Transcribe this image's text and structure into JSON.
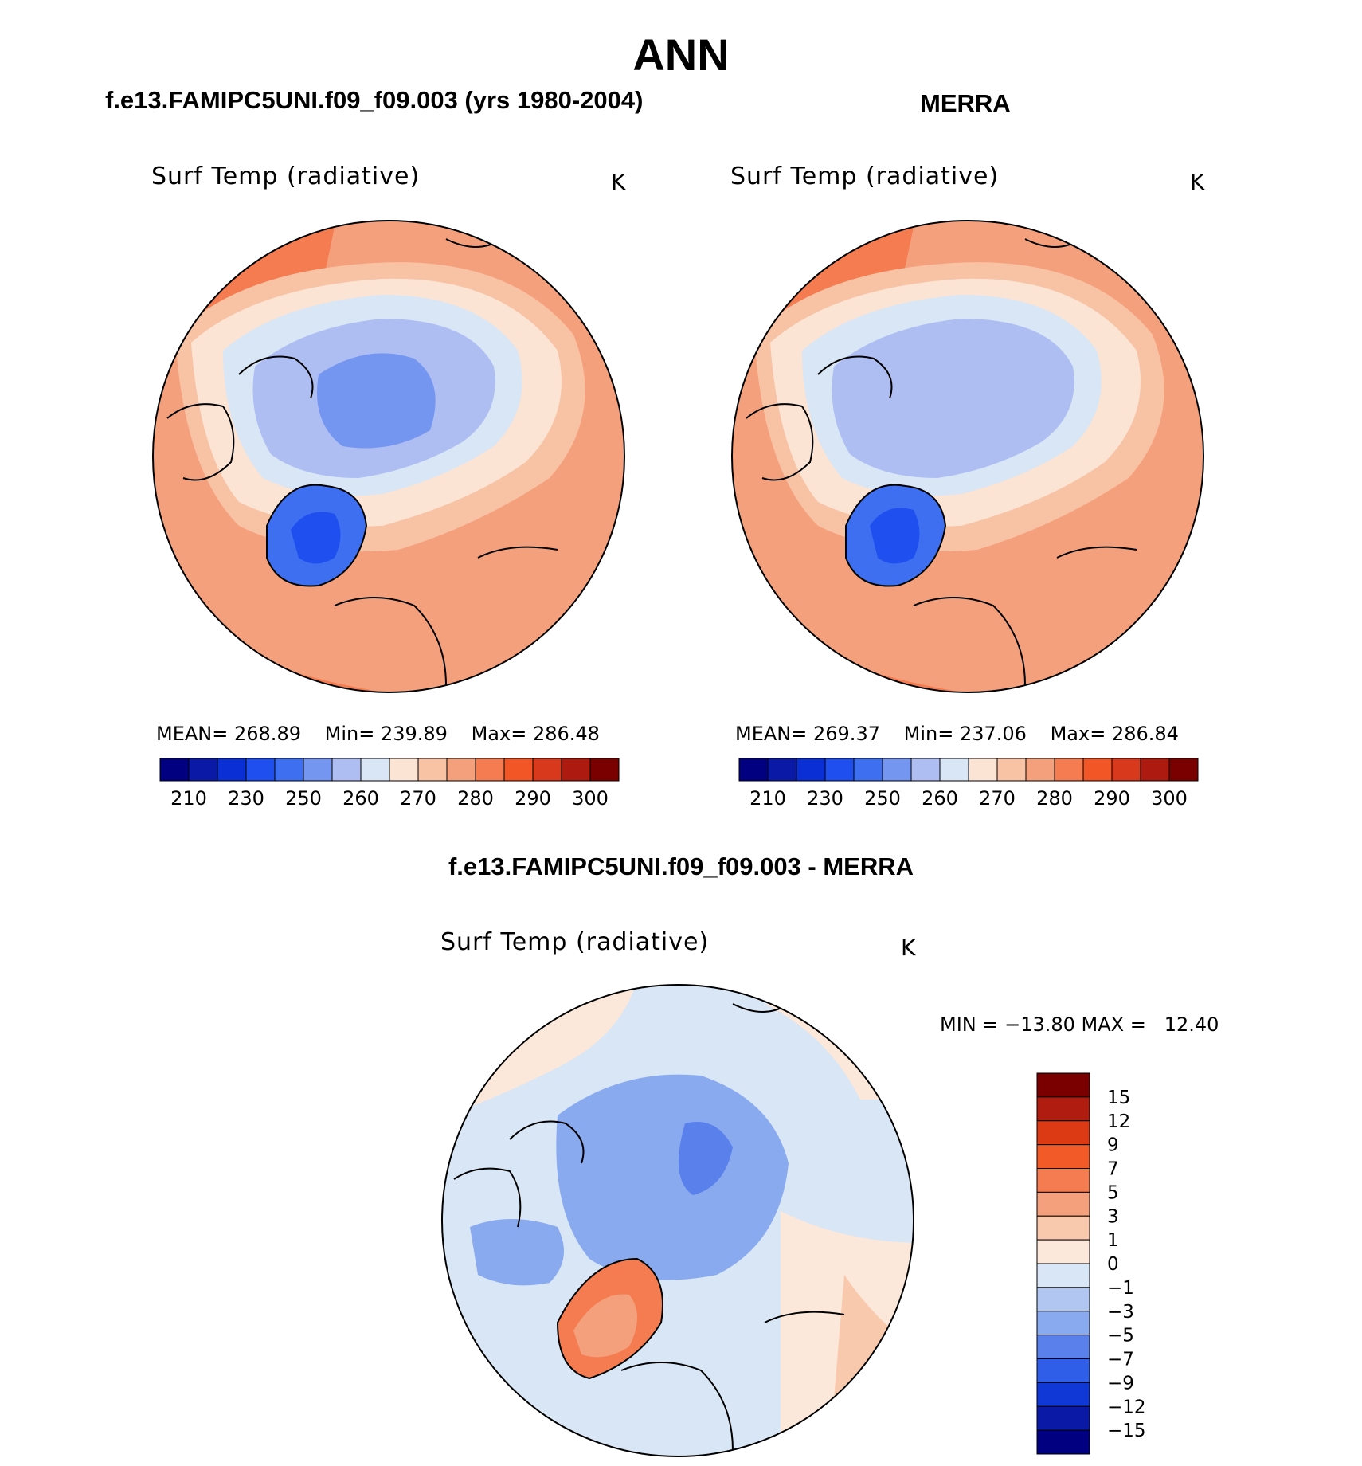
{
  "page": {
    "title": "ANN",
    "left_title": "f.e13.FAMIPC5UNI.f09_f09.003 (yrs 1980-2004)",
    "right_title": "MERRA",
    "bottom_title": "f.e13.FAMIPC5UNI.f09_f09.003 - MERRA"
  },
  "panels": [
    {
      "id": "model",
      "variable": "Surf Temp (radiative)",
      "units": "K",
      "stats": {
        "mean_label": "MEAN=",
        "mean": "268.89",
        "min_label": "Min=",
        "min": "239.89",
        "max_label": "Max=",
        "max": "286.48"
      }
    },
    {
      "id": "merra",
      "variable": "Surf Temp (radiative)",
      "units": "K",
      "stats": {
        "mean_label": "MEAN=",
        "mean": "269.37",
        "min_label": "Min=",
        "min": "237.06",
        "max_label": "Max=",
        "max": "286.84"
      }
    },
    {
      "id": "diff",
      "variable": "Surf Temp (radiative)",
      "units": "K",
      "minmax_text": "MIN = −13.80 MAX =   12.40"
    }
  ],
  "abs_colorbar": {
    "colors": [
      "#000080",
      "#0a1aa6",
      "#0a2fd4",
      "#1f4fef",
      "#3d6ff0",
      "#7596f0",
      "#aebef2",
      "#d8e6f5",
      "#fbe4d4",
      "#f8c2a4",
      "#f5a07c",
      "#f47c50",
      "#f25526",
      "#d8381b",
      "#ad1a10",
      "#7a0000"
    ],
    "ticks": [
      "210",
      "230",
      "250",
      "260",
      "270",
      "280",
      "290",
      "300"
    ]
  },
  "diff_colorbar": {
    "colors": [
      "#7a0000",
      "#b01c10",
      "#dc3a14",
      "#f25a28",
      "#f47c50",
      "#f5a07c",
      "#f9c9ad",
      "#fbe8da",
      "#d8e6f5",
      "#b1c7f2",
      "#8aaaf0",
      "#5a80ec",
      "#2f5ee8",
      "#1038d6",
      "#0a1aa6",
      "#000080"
    ],
    "ticks": [
      "15",
      "12",
      "9",
      "7",
      "5",
      "3",
      "1",
      "0",
      "−1",
      "−3",
      "−5",
      "−7",
      "−9",
      "−12",
      "−15"
    ]
  }
}
